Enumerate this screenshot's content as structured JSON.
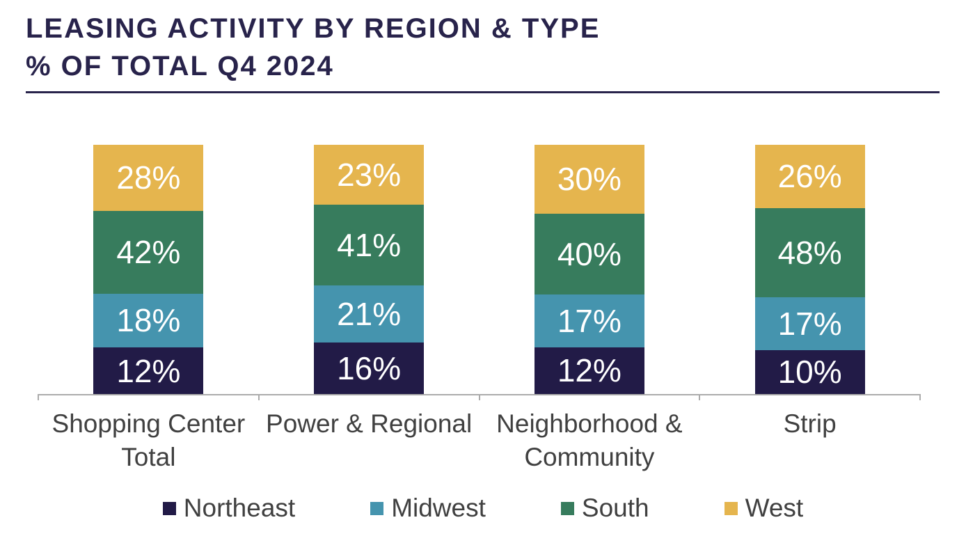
{
  "title": {
    "line1": "LEASING ACTIVITY BY REGION & TYPE",
    "line2": "% OF TOTAL Q4 2024"
  },
  "colors": {
    "title_text": "#28234B",
    "divider": "#28234B",
    "axis_line": "#ABABAB",
    "category_text": "#404040",
    "bar_label_text": "#FFFFFF",
    "background": "#FFFFFF"
  },
  "chart_data": {
    "type": "bar",
    "stacked": true,
    "orientation": "vertical",
    "title": "LEASING ACTIVITY BY REGION & TYPE % OF TOTAL Q4 2024",
    "unit": "%",
    "data_label_format": "{value}%",
    "categories": [
      "Shopping Center Total",
      "Power & Regional",
      "Neighborhood & Community",
      "Strip"
    ],
    "series": [
      {
        "name": "Northeast",
        "color": "#221B47",
        "values": [
          12,
          16,
          12,
          10
        ]
      },
      {
        "name": "Midwest",
        "color": "#4594AE",
        "values": [
          18,
          21,
          17,
          17
        ]
      },
      {
        "name": "South",
        "color": "#377C5D",
        "values": [
          42,
          41,
          40,
          48
        ]
      },
      {
        "name": "West",
        "color": "#E5B54E",
        "values": [
          28,
          23,
          30,
          26
        ]
      }
    ],
    "legend_position": "bottom",
    "legend_entries": [
      "Northeast",
      "Midwest",
      "South",
      "West"
    ],
    "ylim": [
      0,
      100
    ],
    "grid": false,
    "y_axis_visible": false,
    "x_axis_tick_count": 5
  }
}
